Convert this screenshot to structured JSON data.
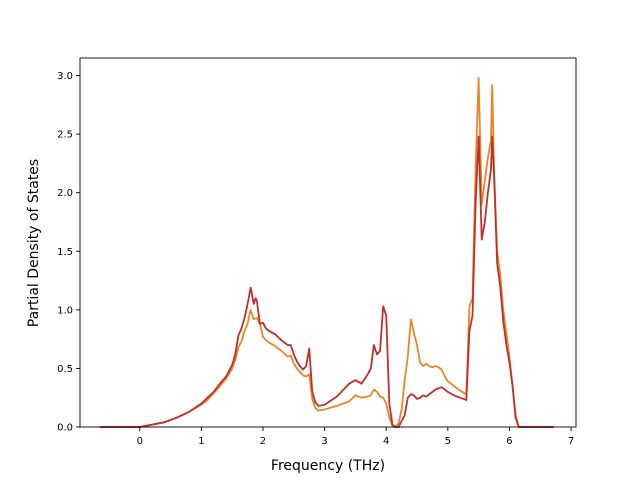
{
  "chart_data": {
    "type": "line",
    "title": "",
    "xlabel": "Frequency (THz)",
    "ylabel": "Partial Density of States",
    "xlim": [
      -0.97,
      7.08
    ],
    "ylim": [
      0.0,
      3.15
    ],
    "xticks": [
      0,
      1,
      2,
      3,
      4,
      5,
      6,
      7
    ],
    "yticks": [
      0.0,
      0.5,
      1.0,
      1.5,
      2.0,
      2.5,
      3.0
    ],
    "xtick_labels": [
      "0",
      "1",
      "2",
      "3",
      "4",
      "5",
      "6",
      "7"
    ],
    "ytick_labels": [
      "0.0",
      "0.5",
      "1.0",
      "1.5",
      "2.0",
      "2.5",
      "3.0"
    ],
    "grid": false,
    "legend": "none",
    "series": [
      {
        "color": "#e8862a",
        "x": [
          -0.65,
          0.0,
          0.2,
          0.4,
          0.6,
          0.8,
          1.0,
          1.1,
          1.2,
          1.3,
          1.4,
          1.5,
          1.55,
          1.6,
          1.65,
          1.7,
          1.75,
          1.8,
          1.85,
          1.9,
          1.95,
          2.0,
          2.05,
          2.1,
          2.2,
          2.3,
          2.4,
          2.45,
          2.5,
          2.55,
          2.6,
          2.65,
          2.7,
          2.75,
          2.8,
          2.85,
          2.9,
          3.0,
          3.2,
          3.4,
          3.5,
          3.6,
          3.7,
          3.75,
          3.8,
          3.85,
          3.9,
          3.95,
          4.0,
          4.05,
          4.1,
          4.15,
          4.2,
          4.25,
          4.3,
          4.35,
          4.4,
          4.45,
          4.5,
          4.55,
          4.6,
          4.65,
          4.7,
          4.75,
          4.8,
          4.85,
          4.9,
          4.95,
          5.0,
          5.1,
          5.2,
          5.3,
          5.35,
          5.4,
          5.45,
          5.5,
          5.55,
          5.6,
          5.65,
          5.7,
          5.72,
          5.75,
          5.8,
          5.85,
          5.9,
          5.95,
          6.0,
          6.05,
          6.1,
          6.15,
          6.3,
          6.72
        ],
        "y": [
          0.0,
          0.0,
          0.02,
          0.04,
          0.08,
          0.13,
          0.19,
          0.23,
          0.29,
          0.35,
          0.41,
          0.5,
          0.57,
          0.68,
          0.73,
          0.82,
          0.88,
          1.0,
          0.92,
          0.93,
          0.88,
          0.77,
          0.74,
          0.72,
          0.69,
          0.65,
          0.6,
          0.61,
          0.54,
          0.5,
          0.47,
          0.44,
          0.43,
          0.45,
          0.24,
          0.16,
          0.14,
          0.15,
          0.18,
          0.22,
          0.27,
          0.25,
          0.26,
          0.27,
          0.32,
          0.3,
          0.26,
          0.25,
          0.2,
          0.08,
          0.01,
          0.0,
          0.03,
          0.15,
          0.4,
          0.6,
          0.92,
          0.8,
          0.7,
          0.55,
          0.52,
          0.54,
          0.52,
          0.51,
          0.52,
          0.51,
          0.49,
          0.43,
          0.39,
          0.35,
          0.31,
          0.28,
          1.03,
          1.1,
          2.2,
          2.98,
          1.9,
          2.1,
          2.3,
          2.45,
          2.92,
          2.2,
          1.5,
          1.3,
          1.0,
          0.8,
          0.6,
          0.35,
          0.1,
          0.0,
          0.0,
          0.0
        ]
      },
      {
        "color": "#c0302a",
        "x": [
          -0.65,
          0.0,
          0.2,
          0.4,
          0.6,
          0.8,
          1.0,
          1.1,
          1.2,
          1.3,
          1.4,
          1.5,
          1.55,
          1.6,
          1.65,
          1.7,
          1.75,
          1.8,
          1.85,
          1.88,
          1.9,
          1.95,
          2.0,
          2.05,
          2.1,
          2.2,
          2.3,
          2.4,
          2.45,
          2.5,
          2.55,
          2.6,
          2.65,
          2.7,
          2.75,
          2.8,
          2.85,
          2.9,
          3.0,
          3.2,
          3.4,
          3.5,
          3.6,
          3.7,
          3.75,
          3.8,
          3.85,
          3.9,
          3.95,
          4.0,
          4.05,
          4.1,
          4.15,
          4.2,
          4.25,
          4.3,
          4.35,
          4.4,
          4.45,
          4.5,
          4.55,
          4.6,
          4.65,
          4.7,
          4.75,
          4.8,
          4.85,
          4.9,
          4.95,
          5.0,
          5.1,
          5.2,
          5.3,
          5.35,
          5.4,
          5.45,
          5.5,
          5.55,
          5.6,
          5.65,
          5.7,
          5.72,
          5.75,
          5.8,
          5.85,
          5.9,
          5.95,
          6.0,
          6.05,
          6.1,
          6.15,
          6.3,
          6.72
        ],
        "y": [
          0.0,
          0.0,
          0.02,
          0.04,
          0.08,
          0.13,
          0.2,
          0.25,
          0.3,
          0.37,
          0.43,
          0.53,
          0.62,
          0.78,
          0.84,
          0.93,
          1.05,
          1.19,
          1.05,
          1.1,
          1.08,
          0.88,
          0.89,
          0.84,
          0.82,
          0.79,
          0.74,
          0.7,
          0.7,
          0.62,
          0.56,
          0.52,
          0.49,
          0.52,
          0.67,
          0.3,
          0.21,
          0.18,
          0.19,
          0.26,
          0.37,
          0.4,
          0.37,
          0.45,
          0.5,
          0.7,
          0.62,
          0.65,
          1.03,
          0.95,
          0.2,
          0.02,
          0.0,
          0.0,
          0.05,
          0.1,
          0.25,
          0.28,
          0.27,
          0.24,
          0.25,
          0.27,
          0.26,
          0.28,
          0.3,
          0.32,
          0.33,
          0.34,
          0.32,
          0.3,
          0.27,
          0.25,
          0.23,
          0.82,
          0.95,
          1.9,
          2.48,
          1.6,
          1.75,
          2.0,
          2.2,
          2.48,
          2.15,
          1.4,
          1.2,
          0.9,
          0.7,
          0.55,
          0.35,
          0.08,
          0.0,
          0.0,
          0.0
        ]
      }
    ]
  }
}
